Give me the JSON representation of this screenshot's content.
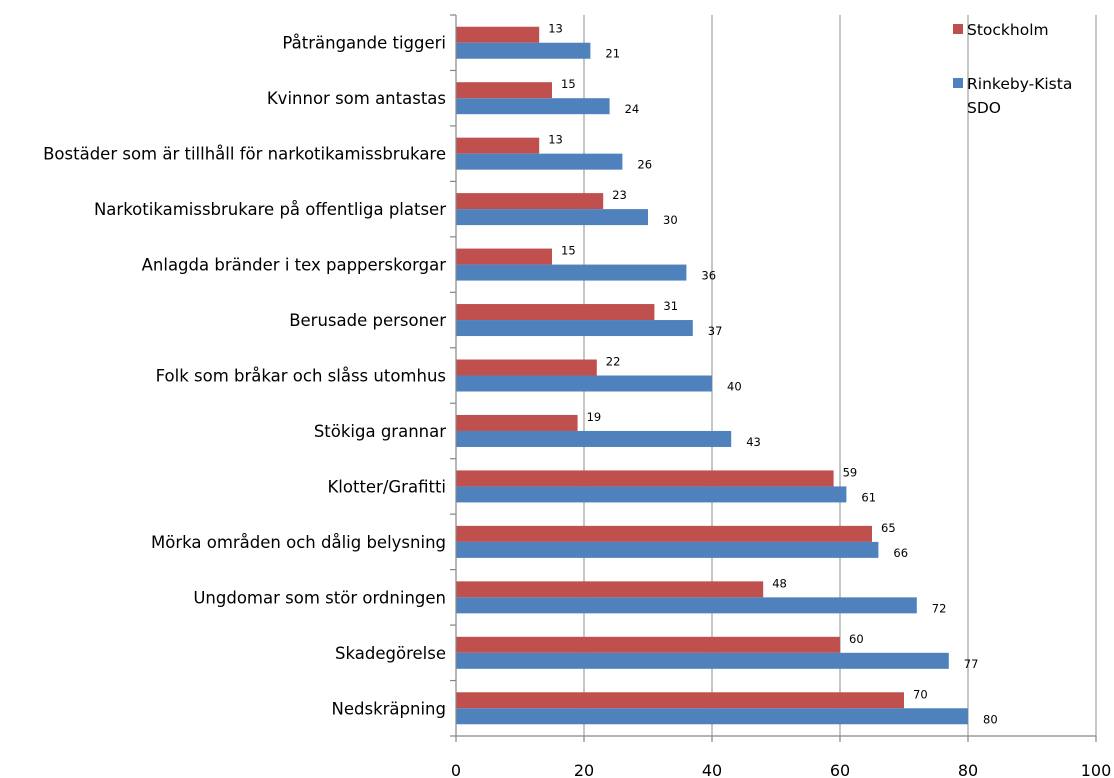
{
  "chart_data": {
    "type": "bar",
    "orientation": "horizontal",
    "categories": [
      "Påträngande tiggeri",
      "Kvinnor som antastas",
      "Bostäder som är tillhåll för narkotikamissbrukare",
      "Narkotikamissbrukare på offentliga platser",
      "Anlagda bränder i tex papperskorgar",
      "Berusade personer",
      "Folk som bråkar och slåss utomhus",
      "Stökiga grannar",
      "Klotter/Grafitti",
      "Mörka områden och dålig belysning",
      "Ungdomar som stör ordningen",
      "Skadegörelse",
      "Nedskräpning"
    ],
    "series": [
      {
        "name": "Stockholm",
        "color": "#c0504d",
        "values": [
          13,
          15,
          13,
          23,
          15,
          31,
          22,
          19,
          59,
          65,
          48,
          60,
          70
        ]
      },
      {
        "name": "Rinkeby-Kista SDO",
        "color": "#4f81bd",
        "values": [
          21,
          24,
          26,
          30,
          36,
          37,
          40,
          43,
          61,
          66,
          72,
          77,
          80
        ]
      }
    ],
    "xlim": [
      0,
      100
    ],
    "xticks": [
      0,
      20,
      40,
      60,
      80,
      100
    ],
    "grid": "vertical",
    "legend_position": "top-right",
    "title": "",
    "xlabel": "",
    "ylabel": ""
  }
}
